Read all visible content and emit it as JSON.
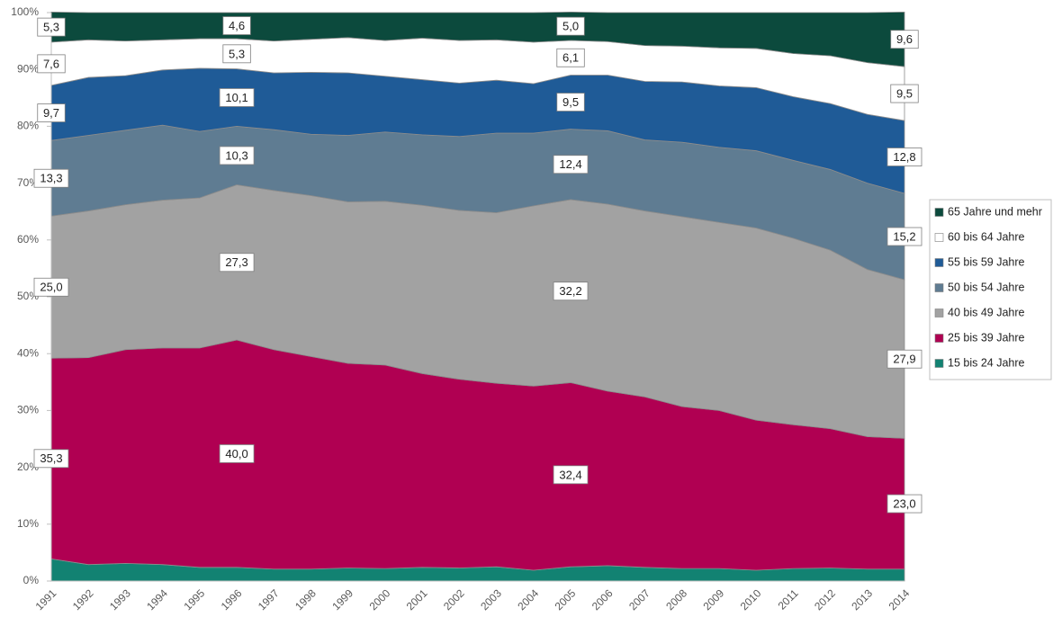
{
  "chart_data": {
    "type": "stacked_area",
    "categories": [
      "1991",
      "1992",
      "1993",
      "1994",
      "1995",
      "1996",
      "1997",
      "1998",
      "1999",
      "2000",
      "2001",
      "2002",
      "2003",
      "2004",
      "2005",
      "2006",
      "2007",
      "2008",
      "2009",
      "2010",
      "2011",
      "2012",
      "2013",
      "2014"
    ],
    "ylim": [
      0,
      100
    ],
    "yticks": [
      {
        "value": 0,
        "label": "0%"
      },
      {
        "value": 10,
        "label": "10%"
      },
      {
        "value": 20,
        "label": "20%"
      },
      {
        "value": 30,
        "label": "30%"
      },
      {
        "value": 40,
        "label": "40%"
      },
      {
        "value": 50,
        "label": "50%"
      },
      {
        "value": 60,
        "label": "60%"
      },
      {
        "value": 70,
        "label": "70%"
      },
      {
        "value": 80,
        "label": "80%"
      },
      {
        "value": 90,
        "label": "90%"
      },
      {
        "value": 100,
        "label": "100%"
      }
    ],
    "legend": "right",
    "series": [
      {
        "name": "15 bis 24 Jahre",
        "color": "#128272",
        "values": [
          3.9,
          2.9,
          3.1,
          2.9,
          2.4,
          2.4,
          2.1,
          2.1,
          2.3,
          2.2,
          2.4,
          2.3,
          2.5,
          1.9,
          2.5,
          2.7,
          2.4,
          2.2,
          2.2,
          1.9,
          2.2,
          2.3,
          2.1,
          2.1
        ]
      },
      {
        "name": "25 bis 39 Jahre",
        "color": "#b00052",
        "values": [
          35.3,
          36.4,
          37.6,
          38.1,
          38.6,
          40.0,
          38.6,
          37.4,
          36.0,
          35.8,
          34.1,
          33.2,
          32.3,
          32.4,
          32.4,
          30.7,
          30.0,
          28.5,
          27.8,
          26.4,
          25.3,
          24.5,
          23.3,
          23.0
        ],
        "value_labels": [
          "35,3",
          null,
          null,
          null,
          null,
          "40,0",
          null,
          null,
          null,
          null,
          null,
          null,
          null,
          null,
          "32,4",
          null,
          null,
          null,
          null,
          null,
          null,
          null,
          null,
          "23,0"
        ]
      },
      {
        "name": "40 bis 49 Jahre",
        "color": "#a2a2a2",
        "values": [
          25.0,
          25.8,
          25.5,
          26.0,
          26.4,
          27.3,
          28.0,
          28.3,
          28.4,
          28.8,
          29.6,
          29.7,
          30.0,
          31.7,
          32.2,
          32.9,
          32.7,
          33.4,
          33.1,
          33.8,
          32.8,
          31.4,
          29.4,
          27.9
        ],
        "value_labels": [
          "25,0",
          null,
          null,
          null,
          null,
          "27,3",
          null,
          null,
          null,
          null,
          null,
          null,
          null,
          null,
          "32,2",
          null,
          null,
          null,
          null,
          null,
          null,
          null,
          null,
          "27,9"
        ]
      },
      {
        "name": "50 bis 54 Jahre",
        "color": "#5f7c92",
        "values": [
          13.3,
          13.3,
          13.1,
          13.2,
          11.7,
          10.3,
          10.7,
          10.8,
          11.7,
          12.2,
          12.4,
          13.0,
          14.0,
          12.8,
          12.4,
          12.9,
          12.5,
          13.1,
          13.2,
          13.6,
          13.7,
          14.2,
          15.2,
          15.2
        ],
        "value_labels": [
          "13,3",
          null,
          null,
          null,
          null,
          "10,3",
          null,
          null,
          null,
          null,
          null,
          null,
          null,
          null,
          "12,4",
          null,
          null,
          null,
          null,
          null,
          null,
          null,
          null,
          "15,2"
        ]
      },
      {
        "name": "55 bis 59 Jahre",
        "color": "#1f5b97",
        "values": [
          9.7,
          10.2,
          9.6,
          9.7,
          11.1,
          10.1,
          10.0,
          10.9,
          11.0,
          9.8,
          9.7,
          9.4,
          9.3,
          8.7,
          9.5,
          9.8,
          10.3,
          10.6,
          10.8,
          11.1,
          11.2,
          11.6,
          12.1,
          12.8
        ],
        "value_labels": [
          "9,7",
          null,
          null,
          null,
          null,
          "10,1",
          null,
          null,
          null,
          null,
          null,
          null,
          null,
          null,
          "9,5",
          null,
          null,
          null,
          null,
          null,
          null,
          null,
          null,
          "12,8"
        ]
      },
      {
        "name": "60 bis 64 Jahre",
        "color": "#ffffff",
        "values": [
          7.6,
          6.6,
          6.1,
          5.3,
          5.2,
          5.3,
          5.6,
          5.8,
          6.2,
          6.3,
          7.3,
          7.5,
          7.1,
          7.3,
          6.1,
          5.9,
          6.3,
          6.3,
          6.7,
          6.9,
          7.6,
          8.4,
          9.1,
          9.5
        ],
        "value_labels": [
          "7,6",
          null,
          null,
          null,
          null,
          "5,3",
          null,
          null,
          null,
          null,
          null,
          null,
          null,
          null,
          "6,1",
          null,
          null,
          null,
          null,
          null,
          null,
          null,
          null,
          "9,5"
        ]
      },
      {
        "name": "65 Jahre und mehr",
        "color": "#0c4a3d",
        "values": [
          5.3,
          4.8,
          5.0,
          4.8,
          4.6,
          4.6,
          5.0,
          4.7,
          4.4,
          4.9,
          4.5,
          4.9,
          4.8,
          5.2,
          5.0,
          5.1,
          5.8,
          5.9,
          6.2,
          6.3,
          7.2,
          7.6,
          8.8,
          9.6
        ],
        "value_labels": [
          "5,3",
          null,
          null,
          null,
          null,
          "4,6",
          null,
          null,
          null,
          null,
          null,
          null,
          null,
          null,
          "5,0",
          null,
          null,
          null,
          null,
          null,
          null,
          null,
          null,
          "9,6"
        ]
      }
    ]
  }
}
